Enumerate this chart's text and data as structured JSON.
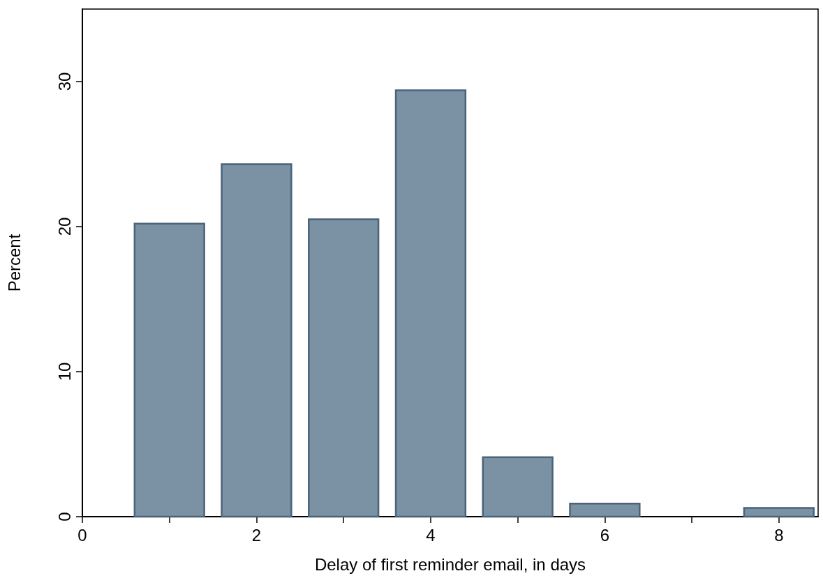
{
  "chart_data": {
    "type": "bar",
    "xlabel": "Delay of first reminder email, in days",
    "ylabel": "Percent",
    "x": [
      1,
      2,
      3,
      4,
      5,
      6,
      8
    ],
    "values": [
      20.2,
      24.3,
      20.5,
      29.4,
      4.1,
      0.9,
      0.6
    ],
    "color": "#7b92a5",
    "xlim": [
      0,
      8.45
    ],
    "xticks": [
      0,
      {
        "value": 1,
        "label": null
      },
      2,
      {
        "value": 3,
        "label": null
      },
      4,
      {
        "value": 5,
        "label": null
      },
      6,
      {
        "value": 7,
        "label": null
      },
      8
    ],
    "ylim": [
      0,
      35
    ],
    "yticks": [
      0,
      10,
      20,
      30
    ],
    "grid": false
  }
}
